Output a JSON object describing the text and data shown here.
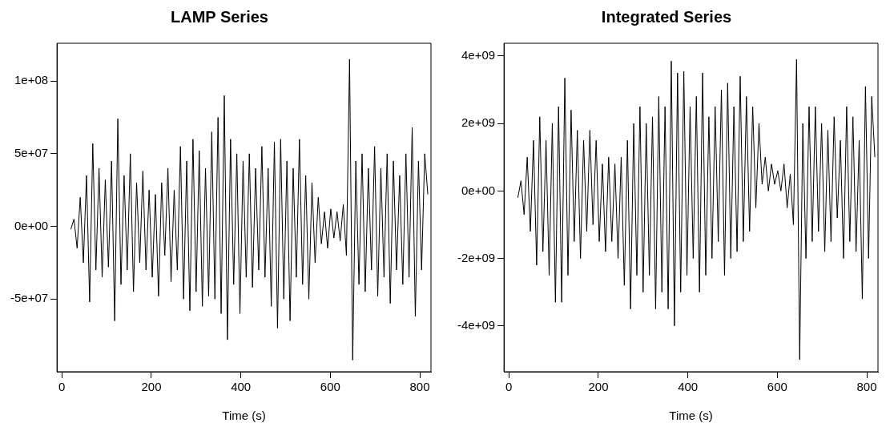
{
  "chart_data": [
    {
      "type": "line",
      "title": "LAMP Series",
      "xlabel": "Time (s)",
      "grid": false,
      "legend": false,
      "marker": "none",
      "line_style": "solid",
      "x": [
        20,
        27,
        34,
        41,
        48,
        55,
        62,
        69,
        76,
        83,
        90,
        97,
        104,
        111,
        118,
        125,
        132,
        139,
        146,
        153,
        160,
        167,
        174,
        181,
        188,
        195,
        202,
        209,
        216,
        223,
        230,
        237,
        244,
        251,
        258,
        265,
        272,
        279,
        286,
        293,
        300,
        307,
        314,
        321,
        328,
        335,
        342,
        349,
        356,
        363,
        370,
        377,
        384,
        391,
        398,
        405,
        412,
        419,
        426,
        433,
        440,
        447,
        454,
        461,
        468,
        475,
        482,
        489,
        496,
        503,
        510,
        517,
        524,
        531,
        538,
        545,
        552,
        559,
        566,
        573,
        580,
        587,
        594,
        601,
        608,
        615,
        622,
        629,
        636,
        643,
        650,
        657,
        664,
        671,
        678,
        685,
        692,
        699,
        706,
        713,
        720,
        727,
        734,
        741,
        748,
        755,
        762,
        769,
        776,
        783,
        790,
        797,
        804,
        811,
        818
      ],
      "series": [
        {
          "color": "#000000",
          "values": [
            -2000000.0,
            5000000.0,
            -15000000.0,
            20000000.0,
            -25000000.0,
            35000000.0,
            -52000000.0,
            57000000.0,
            -30000000.0,
            40000000.0,
            -35000000.0,
            32000000.0,
            -28000000.0,
            45000000.0,
            -65000000.0,
            74000000.0,
            -40000000.0,
            35000000.0,
            -30000000.0,
            50000000.0,
            -45000000.0,
            30000000.0,
            -25000000.0,
            38000000.0,
            -30000000.0,
            25000000.0,
            -35000000.0,
            22000000.0,
            -48000000.0,
            30000000.0,
            -20000000.0,
            40000000.0,
            -38000000.0,
            25000000.0,
            -30000000.0,
            55000000.0,
            -50000000.0,
            45000000.0,
            -58000000.0,
            60000000.0,
            -45000000.0,
            52000000.0,
            -55000000.0,
            40000000.0,
            -48000000.0,
            65000000.0,
            -50000000.0,
            75000000.0,
            -60000000.0,
            90000000.0,
            -78000000.0,
            60000000.0,
            -40000000.0,
            50000000.0,
            -60000000.0,
            45000000.0,
            -35000000.0,
            50000000.0,
            -42000000.0,
            40000000.0,
            -30000000.0,
            55000000.0,
            -35000000.0,
            40000000.0,
            -55000000.0,
            58000000.0,
            -70000000.0,
            60000000.0,
            -50000000.0,
            45000000.0,
            -65000000.0,
            40000000.0,
            -35000000.0,
            60000000.0,
            -40000000.0,
            35000000.0,
            -50000000.0,
            30000000.0,
            -25000000.0,
            20000000.0,
            -12000000.0,
            10000000.0,
            -15000000.0,
            12000000.0,
            -8000000.0,
            10000000.0,
            -10000000.0,
            15000000.0,
            -20000000.0,
            115000000.0,
            -92000000.0,
            45000000.0,
            -40000000.0,
            50000000.0,
            -45000000.0,
            40000000.0,
            -30000000.0,
            55000000.0,
            -48000000.0,
            40000000.0,
            -35000000.0,
            50000000.0,
            -53000000.0,
            45000000.0,
            -30000000.0,
            35000000.0,
            -40000000.0,
            50000000.0,
            -35000000.0,
            68000000.0,
            -62000000.0,
            45000000.0,
            -30000000.0,
            50000000.0,
            22000000.0
          ]
        }
      ],
      "xlim": [
        -11,
        825
      ],
      "xticks": [
        0,
        200,
        400,
        600,
        800
      ],
      "ylim": [
        -100000000.0,
        126000000.0
      ],
      "yticks": [
        {
          "value": -50000000.0,
          "label": "-5e+07"
        },
        {
          "value": 0,
          "label": "0e+00"
        },
        {
          "value": 50000000.0,
          "label": "5e+07"
        },
        {
          "value": 100000000.0,
          "label": "1e+08"
        }
      ]
    },
    {
      "type": "line",
      "title": "Integrated Series",
      "xlabel": "Time (s)",
      "grid": false,
      "legend": false,
      "marker": "none",
      "line_style": "solid",
      "x": [
        20,
        27,
        34,
        41,
        48,
        55,
        62,
        69,
        76,
        83,
        90,
        97,
        104,
        111,
        118,
        125,
        132,
        139,
        146,
        153,
        160,
        167,
        174,
        181,
        188,
        195,
        202,
        209,
        216,
        223,
        230,
        237,
        244,
        251,
        258,
        265,
        272,
        279,
        286,
        293,
        300,
        307,
        314,
        321,
        328,
        335,
        342,
        349,
        356,
        363,
        370,
        377,
        384,
        391,
        398,
        405,
        412,
        419,
        426,
        433,
        440,
        447,
        454,
        461,
        468,
        475,
        482,
        489,
        496,
        503,
        510,
        517,
        524,
        531,
        538,
        545,
        552,
        559,
        566,
        573,
        580,
        587,
        594,
        601,
        608,
        615,
        622,
        629,
        636,
        643,
        650,
        657,
        664,
        671,
        678,
        685,
        692,
        699,
        706,
        713,
        720,
        727,
        734,
        741,
        748,
        755,
        762,
        769,
        776,
        783,
        790,
        797,
        804,
        811,
        818
      ],
      "series": [
        {
          "color": "#000000",
          "values": [
            -200000000.0,
            300000000.0,
            -700000000.0,
            1000000000.0,
            -1200000000.0,
            1500000000.0,
            -2200000000.0,
            2200000000.0,
            -1800000000.0,
            1500000000.0,
            -2500000000.0,
            2000000000.0,
            -3300000000.0,
            2500000000.0,
            -3300000000.0,
            3350000000.0,
            -2500000000.0,
            2400000000.0,
            -1500000000.0,
            1800000000.0,
            -2000000000.0,
            1500000000.0,
            -1200000000.0,
            1800000000.0,
            -1000000000.0,
            1500000000.0,
            -1500000000.0,
            800000000.0,
            -1800000000.0,
            1000000000.0,
            -1500000000.0,
            800000000.0,
            -2000000000.0,
            1000000000.0,
            -2800000000.0,
            1500000000.0,
            -3500000000.0,
            2000000000.0,
            -2500000000.0,
            2500000000.0,
            -3000000000.0,
            2000000000.0,
            -2500000000.0,
            2200000000.0,
            -3500000000.0,
            2800000000.0,
            -3000000000.0,
            2500000000.0,
            -3500000000.0,
            3850000000.0,
            -4000000000.0,
            3500000000.0,
            -3000000000.0,
            3550000000.0,
            -2500000000.0,
            2500000000.0,
            -2000000000.0,
            2800000000.0,
            -3000000000.0,
            3500000000.0,
            -2500000000.0,
            2200000000.0,
            -2000000000.0,
            2500000000.0,
            -1500000000.0,
            3000000000.0,
            -2500000000.0,
            3200000000.0,
            -2000000000.0,
            2500000000.0,
            -1800000000.0,
            3400000000.0,
            -1500000000.0,
            2800000000.0,
            -1200000000.0,
            2500000000.0,
            -500000000.0,
            2000000000.0,
            200000000.0,
            1000000000.0,
            0,
            800000000.0,
            200000000.0,
            600000000.0,
            0,
            800000000.0,
            -500000000.0,
            500000000.0,
            -1000000000.0,
            3900000000.0,
            -5000000000.0,
            2000000000.0,
            -2000000000.0,
            2500000000.0,
            -1500000000.0,
            2500000000.0,
            -1200000000.0,
            2000000000.0,
            -1800000000.0,
            1800000000.0,
            -1500000000.0,
            2200000000.0,
            -800000000.0,
            1500000000.0,
            -2000000000.0,
            2500000000.0,
            -1500000000.0,
            2200000000.0,
            -1800000000.0,
            1500000000.0,
            -3200000000.0,
            3100000000.0,
            -2000000000.0,
            2800000000.0,
            1000000000.0
          ]
        }
      ],
      "xlim": [
        -11,
        825
      ],
      "xticks": [
        0,
        200,
        400,
        600,
        800
      ],
      "ylim": [
        -5360000000.0,
        4380000000.0
      ],
      "yticks": [
        {
          "value": -4000000000.0,
          "label": "-4e+09"
        },
        {
          "value": -2000000000.0,
          "label": "-2e+09"
        },
        {
          "value": 0,
          "label": "0e+00"
        },
        {
          "value": 2000000000.0,
          "label": "2e+09"
        },
        {
          "value": 4000000000.0,
          "label": "4e+09"
        }
      ]
    }
  ]
}
